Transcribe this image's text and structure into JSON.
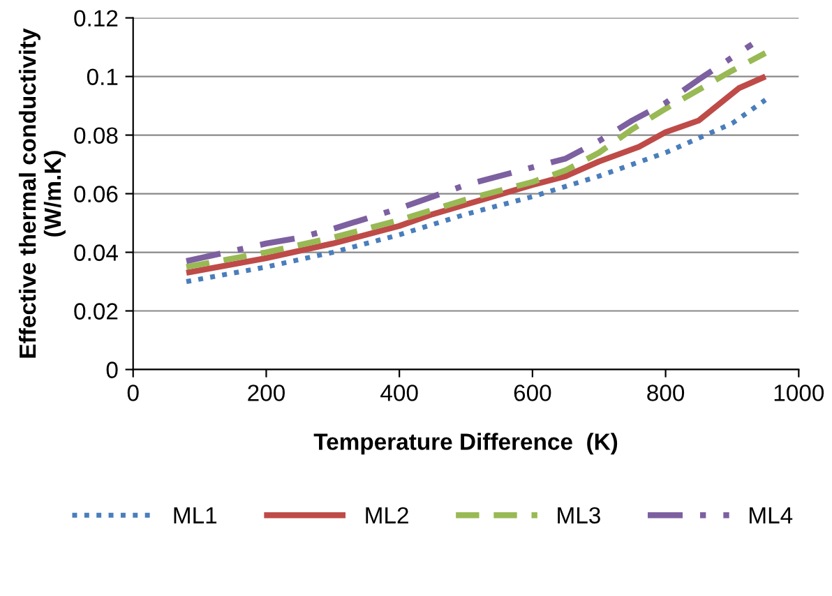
{
  "chart_data": {
    "type": "line",
    "xlabel": "Temperature Difference  (K)",
    "ylabel": "Effective thermal conductivity\n(W/m.K)",
    "xlim": [
      0,
      1000
    ],
    "xticks": [
      0,
      200,
      400,
      600,
      800,
      1000
    ],
    "ylim": [
      0,
      0.12
    ],
    "yticks": [
      0,
      0.02,
      0.04,
      0.06,
      0.08,
      0.1,
      0.12
    ],
    "grid": "y",
    "legend": "bottom",
    "marker": "none",
    "series": [
      {
        "name": "ML1",
        "color": "#4a7ebb",
        "line_style": "dotted",
        "x": [
          80,
          200,
          300,
          400,
          500,
          600,
          700,
          800,
          900,
          950
        ],
        "values": [
          0.03,
          0.035,
          0.04,
          0.046,
          0.053,
          0.059,
          0.066,
          0.074,
          0.084,
          0.092
        ]
      },
      {
        "name": "ML2",
        "color": "#be4b48",
        "line_style": "solid",
        "x": [
          80,
          200,
          300,
          400,
          450,
          600,
          650,
          700,
          760,
          800,
          850,
          910,
          950
        ],
        "values": [
          0.033,
          0.038,
          0.043,
          0.049,
          0.053,
          0.063,
          0.066,
          0.071,
          0.076,
          0.081,
          0.085,
          0.096,
          0.1
        ]
      },
      {
        "name": "ML3",
        "color": "#98b954",
        "line_style": "dashed",
        "x": [
          80,
          200,
          300,
          400,
          500,
          600,
          650,
          700,
          750,
          800,
          900,
          950
        ],
        "values": [
          0.035,
          0.04,
          0.045,
          0.051,
          0.058,
          0.064,
          0.068,
          0.074,
          0.082,
          0.089,
          0.102,
          0.108
        ]
      },
      {
        "name": "ML4",
        "color": "#7d60a0",
        "line_style": "dashdot",
        "x": [
          80,
          200,
          250,
          300,
          400,
          450,
          500,
          600,
          650,
          700,
          750,
          800,
          850,
          930
        ],
        "values": [
          0.037,
          0.043,
          0.045,
          0.048,
          0.055,
          0.059,
          0.063,
          0.069,
          0.072,
          0.078,
          0.085,
          0.091,
          0.099,
          0.111
        ]
      }
    ]
  }
}
